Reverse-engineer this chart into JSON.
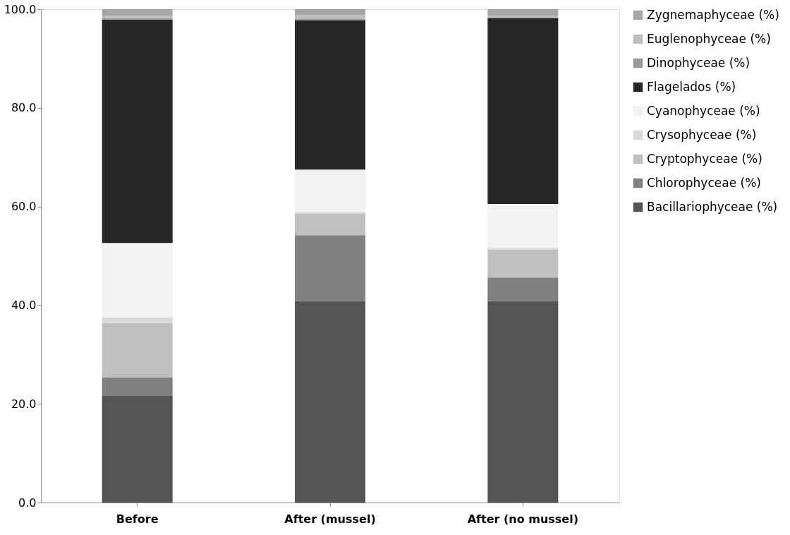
{
  "chart_data": {
    "type": "bar",
    "stacked": true,
    "categories": [
      "Before",
      "After (mussel)",
      "After (no mussel)"
    ],
    "series": [
      {
        "name": "Bacillariophyceae (%)",
        "color": "#555555",
        "values": [
          21.6,
          40.8,
          40.8
        ]
      },
      {
        "name": "Chlorophyceae (%)",
        "color": "#808080",
        "values": [
          3.8,
          13.4,
          4.8
        ]
      },
      {
        "name": "Cryptophyceae (%)",
        "color": "#c0c0c0",
        "values": [
          11.0,
          4.4,
          5.7
        ]
      },
      {
        "name": "Crysophyceae (%)",
        "color": "#d9d9d9",
        "values": [
          1.1,
          0.3,
          0.3
        ]
      },
      {
        "name": "Cyanophyceae (%)",
        "color": "#f2f2f2",
        "values": [
          15.1,
          8.6,
          8.9
        ]
      },
      {
        "name": "Flagelados (%)",
        "color": "#262626",
        "values": [
          45.3,
          30.2,
          37.7
        ]
      },
      {
        "name": "Dinophyceae (%)",
        "color": "#999999",
        "values": [
          0.3,
          0.3,
          0.2
        ]
      },
      {
        "name": "Euglenophyceae (%)",
        "color": "#bfbfbf",
        "values": [
          0.5,
          0.8,
          0.3
        ]
      },
      {
        "name": "Zygnemaphyceae (%)",
        "color": "#a6a6a6",
        "values": [
          1.3,
          1.2,
          1.3
        ]
      }
    ],
    "ylim": [
      0,
      100
    ],
    "yticks": [
      {
        "value": 0,
        "label": "0.0"
      },
      {
        "value": 20,
        "label": "20.0"
      },
      {
        "value": 40,
        "label": "40.0"
      },
      {
        "value": 60,
        "label": "60.0"
      },
      {
        "value": 80,
        "label": "80.0"
      },
      {
        "value": 100,
        "label": "100.0"
      }
    ],
    "grid": false,
    "legend": "right"
  }
}
